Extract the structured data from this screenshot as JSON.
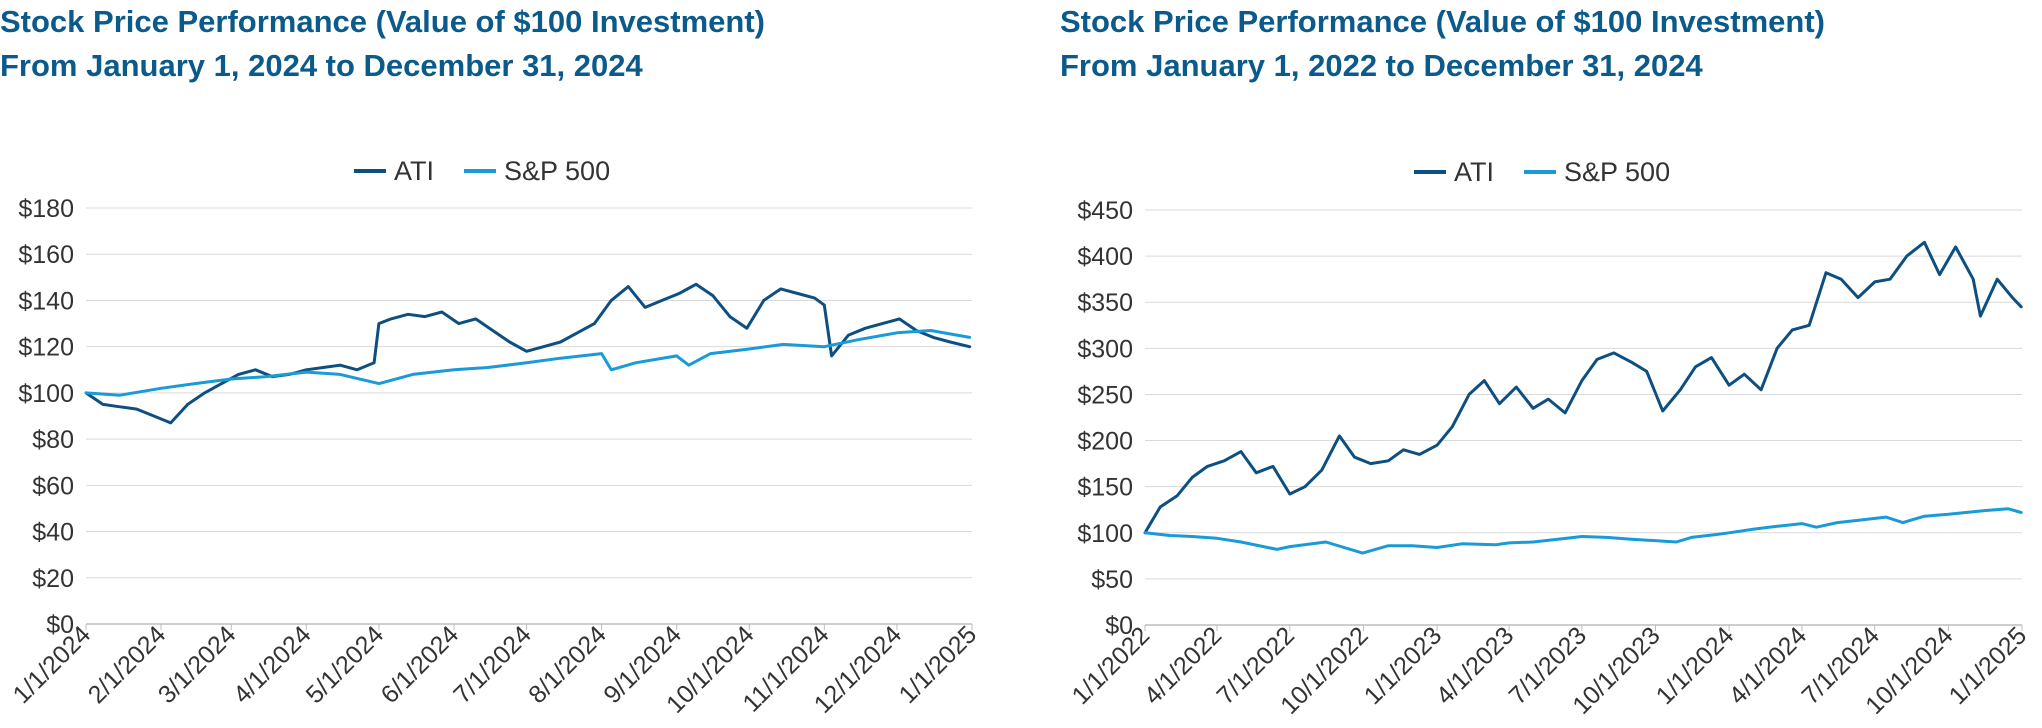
{
  "chart_data": [
    {
      "type": "line",
      "title": "Stock Price Performance (Value of $100 Investment)",
      "subtitle": "From January 1, 2024 to December 31, 2024",
      "ylim": [
        0,
        180
      ],
      "y_ticks": [
        "$0",
        "$20",
        "$40",
        "$60",
        "$80",
        "$100",
        "$120",
        "$140",
        "$160",
        "$180"
      ],
      "x_ticks": [
        "1/1/2024",
        "2/1/2024",
        "3/1/2024",
        "4/1/2024",
        "5/1/2024",
        "6/1/2024",
        "7/1/2024",
        "8/1/2024",
        "9/1/2024",
        "10/1/2024",
        "11/1/2024",
        "12/1/2024",
        "1/1/2025"
      ],
      "grid": true,
      "legend": "top-center",
      "series": [
        {
          "name": "ATI",
          "color": "#0d4f80",
          "x": [
            "2024-01-01",
            "2024-01-08",
            "2024-01-15",
            "2024-01-22",
            "2024-01-29",
            "2024-02-05",
            "2024-02-12",
            "2024-02-19",
            "2024-02-26",
            "2024-03-04",
            "2024-03-11",
            "2024-03-18",
            "2024-03-25",
            "2024-04-01",
            "2024-04-08",
            "2024-04-15",
            "2024-04-22",
            "2024-04-29",
            "2024-05-01",
            "2024-05-06",
            "2024-05-13",
            "2024-05-20",
            "2024-05-27",
            "2024-06-03",
            "2024-06-10",
            "2024-06-17",
            "2024-06-24",
            "2024-07-01",
            "2024-07-08",
            "2024-07-15",
            "2024-07-22",
            "2024-07-29",
            "2024-08-05",
            "2024-08-12",
            "2024-08-19",
            "2024-08-26",
            "2024-09-02",
            "2024-09-09",
            "2024-09-16",
            "2024-09-23",
            "2024-09-30",
            "2024-10-07",
            "2024-10-14",
            "2024-10-21",
            "2024-10-28",
            "2024-11-01",
            "2024-11-04",
            "2024-11-11",
            "2024-11-18",
            "2024-11-25",
            "2024-12-02",
            "2024-12-09",
            "2024-12-16",
            "2024-12-23",
            "2024-12-31"
          ],
          "values": [
            100,
            95,
            94,
            93,
            90,
            87,
            95,
            100,
            104,
            108,
            110,
            107,
            108,
            110,
            111,
            112,
            110,
            113,
            130,
            132,
            134,
            133,
            135,
            130,
            132,
            127,
            122,
            118,
            120,
            122,
            126,
            130,
            140,
            146,
            137,
            140,
            143,
            147,
            142,
            133,
            128,
            140,
            145,
            143,
            141,
            138,
            116,
            125,
            128,
            130,
            132,
            127,
            124,
            122,
            120
          ]
        },
        {
          "name": "S&P 500",
          "color": "#1a9bd7",
          "x": [
            "2024-01-01",
            "2024-01-15",
            "2024-02-01",
            "2024-02-15",
            "2024-03-01",
            "2024-03-15",
            "2024-04-01",
            "2024-04-15",
            "2024-05-01",
            "2024-05-15",
            "2024-06-01",
            "2024-06-15",
            "2024-07-01",
            "2024-07-15",
            "2024-08-01",
            "2024-08-05",
            "2024-08-15",
            "2024-09-01",
            "2024-09-06",
            "2024-09-15",
            "2024-10-01",
            "2024-10-15",
            "2024-11-01",
            "2024-11-15",
            "2024-12-01",
            "2024-12-15",
            "2024-12-31"
          ],
          "values": [
            100,
            99,
            102,
            104,
            106,
            107,
            109,
            108,
            104,
            108,
            110,
            111,
            113,
            115,
            117,
            110,
            113,
            116,
            112,
            117,
            119,
            121,
            120,
            123,
            126,
            127,
            124
          ]
        }
      ]
    },
    {
      "type": "line",
      "title": "Stock Price Performance (Value of $100 Investment)",
      "subtitle": "From January 1, 2022 to December 31, 2024",
      "ylim": [
        0,
        450
      ],
      "y_ticks": [
        "$0",
        "$50",
        "$100",
        "$150",
        "$200",
        "$250",
        "$300",
        "$350",
        "$400",
        "$450"
      ],
      "x_ticks": [
        "1/1/2022",
        "4/1/2022",
        "7/1/2022",
        "10/1/2022",
        "1/1/2023",
        "4/1/2023",
        "7/1/2023",
        "10/1/2023",
        "1/1/2024",
        "4/1/2024",
        "7/1/2024",
        "10/1/2024",
        "1/1/2025"
      ],
      "grid": true,
      "legend": "top-center",
      "series": [
        {
          "name": "ATI",
          "color": "#0d4f80",
          "x": [
            "2022-01-01",
            "2022-01-20",
            "2022-02-10",
            "2022-03-01",
            "2022-03-20",
            "2022-04-10",
            "2022-05-01",
            "2022-05-20",
            "2022-06-10",
            "2022-07-01",
            "2022-07-20",
            "2022-08-10",
            "2022-09-01",
            "2022-09-20",
            "2022-10-10",
            "2022-11-01",
            "2022-11-20",
            "2022-12-10",
            "2023-01-01",
            "2023-01-20",
            "2023-02-10",
            "2023-03-01",
            "2023-03-20",
            "2023-04-10",
            "2023-05-01",
            "2023-05-20",
            "2023-06-10",
            "2023-07-01",
            "2023-07-20",
            "2023-08-10",
            "2023-09-01",
            "2023-09-20",
            "2023-10-10",
            "2023-11-01",
            "2023-11-20",
            "2023-12-10",
            "2024-01-01",
            "2024-01-20",
            "2024-02-10",
            "2024-03-01",
            "2024-03-20",
            "2024-04-10",
            "2024-05-01",
            "2024-05-20",
            "2024-06-10",
            "2024-07-01",
            "2024-07-20",
            "2024-08-10",
            "2024-09-01",
            "2024-09-20",
            "2024-10-10",
            "2024-11-01",
            "2024-11-10",
            "2024-12-01",
            "2024-12-20",
            "2024-12-31"
          ],
          "values": [
            100,
            128,
            140,
            160,
            172,
            178,
            188,
            165,
            172,
            142,
            150,
            168,
            205,
            182,
            175,
            178,
            190,
            185,
            195,
            215,
            250,
            265,
            240,
            258,
            235,
            245,
            230,
            265,
            288,
            295,
            285,
            275,
            232,
            255,
            280,
            290,
            260,
            272,
            255,
            300,
            320,
            325,
            382,
            375,
            355,
            372,
            375,
            400,
            415,
            380,
            410,
            375,
            335,
            375,
            355,
            345
          ]
        },
        {
          "name": "S&P 500",
          "color": "#1a9bd7",
          "x": [
            "2022-01-01",
            "2022-02-01",
            "2022-03-01",
            "2022-04-01",
            "2022-05-01",
            "2022-06-15",
            "2022-07-01",
            "2022-08-15",
            "2022-09-30",
            "2022-11-01",
            "2022-12-01",
            "2023-01-01",
            "2023-02-01",
            "2023-03-15",
            "2023-04-01",
            "2023-05-01",
            "2023-06-01",
            "2023-07-01",
            "2023-08-01",
            "2023-09-01",
            "2023-10-27",
            "2023-11-15",
            "2023-12-15",
            "2024-01-01",
            "2024-02-01",
            "2024-03-01",
            "2024-04-01",
            "2024-04-19",
            "2024-05-15",
            "2024-06-15",
            "2024-07-15",
            "2024-08-05",
            "2024-09-01",
            "2024-10-01",
            "2024-11-15",
            "2024-12-15",
            "2024-12-31"
          ],
          "values": [
            100,
            97,
            96,
            94,
            90,
            82,
            85,
            90,
            78,
            86,
            86,
            84,
            88,
            87,
            89,
            90,
            93,
            96,
            95,
            93,
            90,
            95,
            98,
            100,
            104,
            107,
            110,
            106,
            111,
            114,
            117,
            111,
            118,
            120,
            124,
            126,
            122
          ]
        }
      ]
    }
  ]
}
